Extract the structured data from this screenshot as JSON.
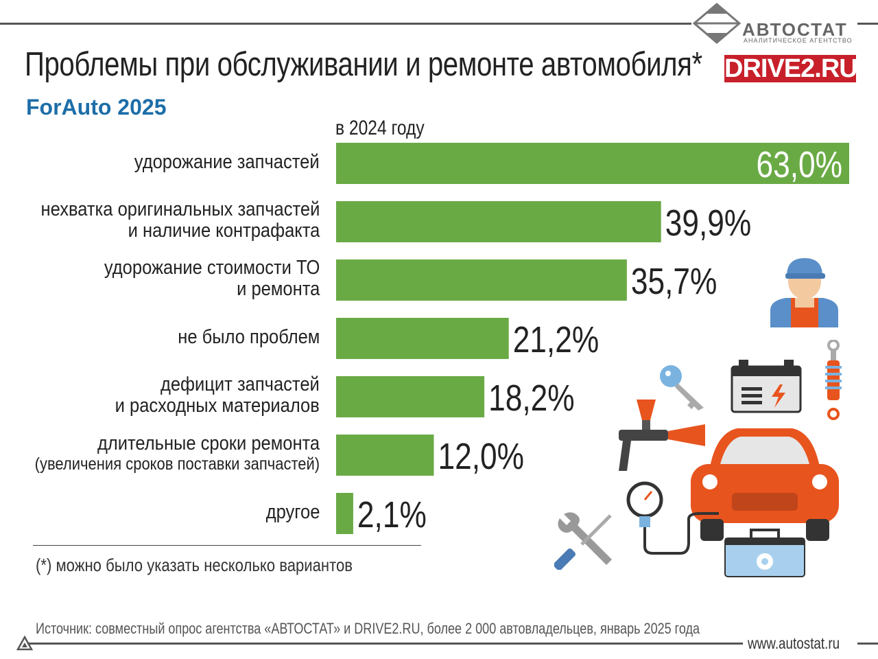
{
  "header": {
    "title": "Проблемы при обслуживании и ремонте автомобиля*",
    "subtitle": "ForAuto 2025",
    "brand_name": "АВТОСТАТ",
    "brand_tagline": "АНАЛИТИЧЕСКОЕ АГЕНТСТВО",
    "partner_logo": "DRIVE2.RU"
  },
  "chart_data": {
    "type": "bar",
    "orientation": "horizontal",
    "series_label": "в 2024 году",
    "categories": [
      [
        "удорожание запчастей"
      ],
      [
        "нехватка оригинальных запчастей",
        "и наличие контрафакта"
      ],
      [
        "удорожание стоимости ТО",
        "и ремонта"
      ],
      [
        "не было проблем"
      ],
      [
        "дефицит запчастей",
        "и расходных материалов"
      ],
      [
        "длительные сроки ремонта",
        "(увеличения сроков поставки запчастей)"
      ],
      [
        "другое"
      ]
    ],
    "values": [
      63.0,
      39.9,
      35.7,
      21.2,
      18.2,
      12.0,
      2.1
    ],
    "value_labels": [
      "63,0%",
      "39,9%",
      "35,7%",
      "21,2%",
      "18,2%",
      "12,0%",
      "2,1%"
    ],
    "xlim": [
      0,
      63
    ],
    "bar_color": "#6aaa45",
    "grid": false
  },
  "footnote": "(*) можно было указать несколько вариантов",
  "source": "Источник: совместный опрос агентства «АВТОСТАТ» и DRIVE2.RU, более 2 000 автовладельцев, январь 2025 года",
  "website": "www.autostat.ru",
  "colors": {
    "accent_blue": "#1d6ea8",
    "drive2_red": "#c8202a",
    "car_orange": "#e8541e",
    "bar_green": "#6aaa45"
  },
  "icons": [
    "mechanic-icon",
    "key-icon",
    "battery-icon",
    "shock-absorber-icon",
    "spray-gun-icon",
    "car-icon",
    "pressure-gauge-icon",
    "wrench-screwdriver-icon",
    "toolbox-icon"
  ]
}
